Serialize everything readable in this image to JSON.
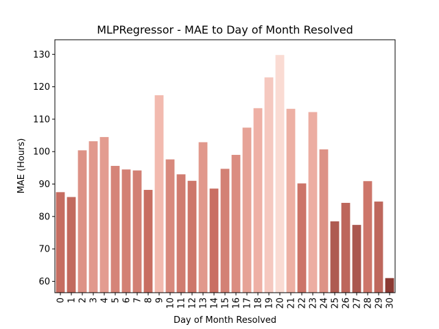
{
  "chart_data": {
    "type": "bar",
    "title": "MLPRegressor - MAE to Day of Month Resolved",
    "xlabel": "Day of Month Resolved",
    "ylabel": "MAE (Hours)",
    "categories": [
      "0",
      "1",
      "2",
      "3",
      "4",
      "5",
      "6",
      "7",
      "8",
      "9",
      "10",
      "11",
      "12",
      "13",
      "14",
      "15",
      "16",
      "17",
      "18",
      "19",
      "20",
      "21",
      "22",
      "23",
      "24",
      "25",
      "26",
      "27",
      "28",
      "29",
      "30"
    ],
    "values": [
      87.5,
      86.0,
      100.4,
      103.2,
      104.5,
      95.6,
      94.5,
      94.2,
      88.2,
      117.4,
      97.6,
      93.0,
      91.0,
      102.9,
      88.6,
      94.7,
      99.0,
      107.4,
      113.4,
      122.9,
      129.8,
      113.2,
      90.2,
      112.2,
      100.7,
      78.5,
      84.2,
      77.4,
      90.9,
      84.6,
      61.0
    ],
    "ylim": [
      56.5,
      134.5
    ],
    "yticks": [
      60,
      70,
      80,
      90,
      100,
      110,
      120,
      130
    ],
    "grid": false,
    "legend": "none",
    "colormap": [
      "#8b3a33",
      "#a4534a",
      "#c96f63",
      "#e0978b",
      "#f1b6ab",
      "#fadbd3"
    ]
  }
}
